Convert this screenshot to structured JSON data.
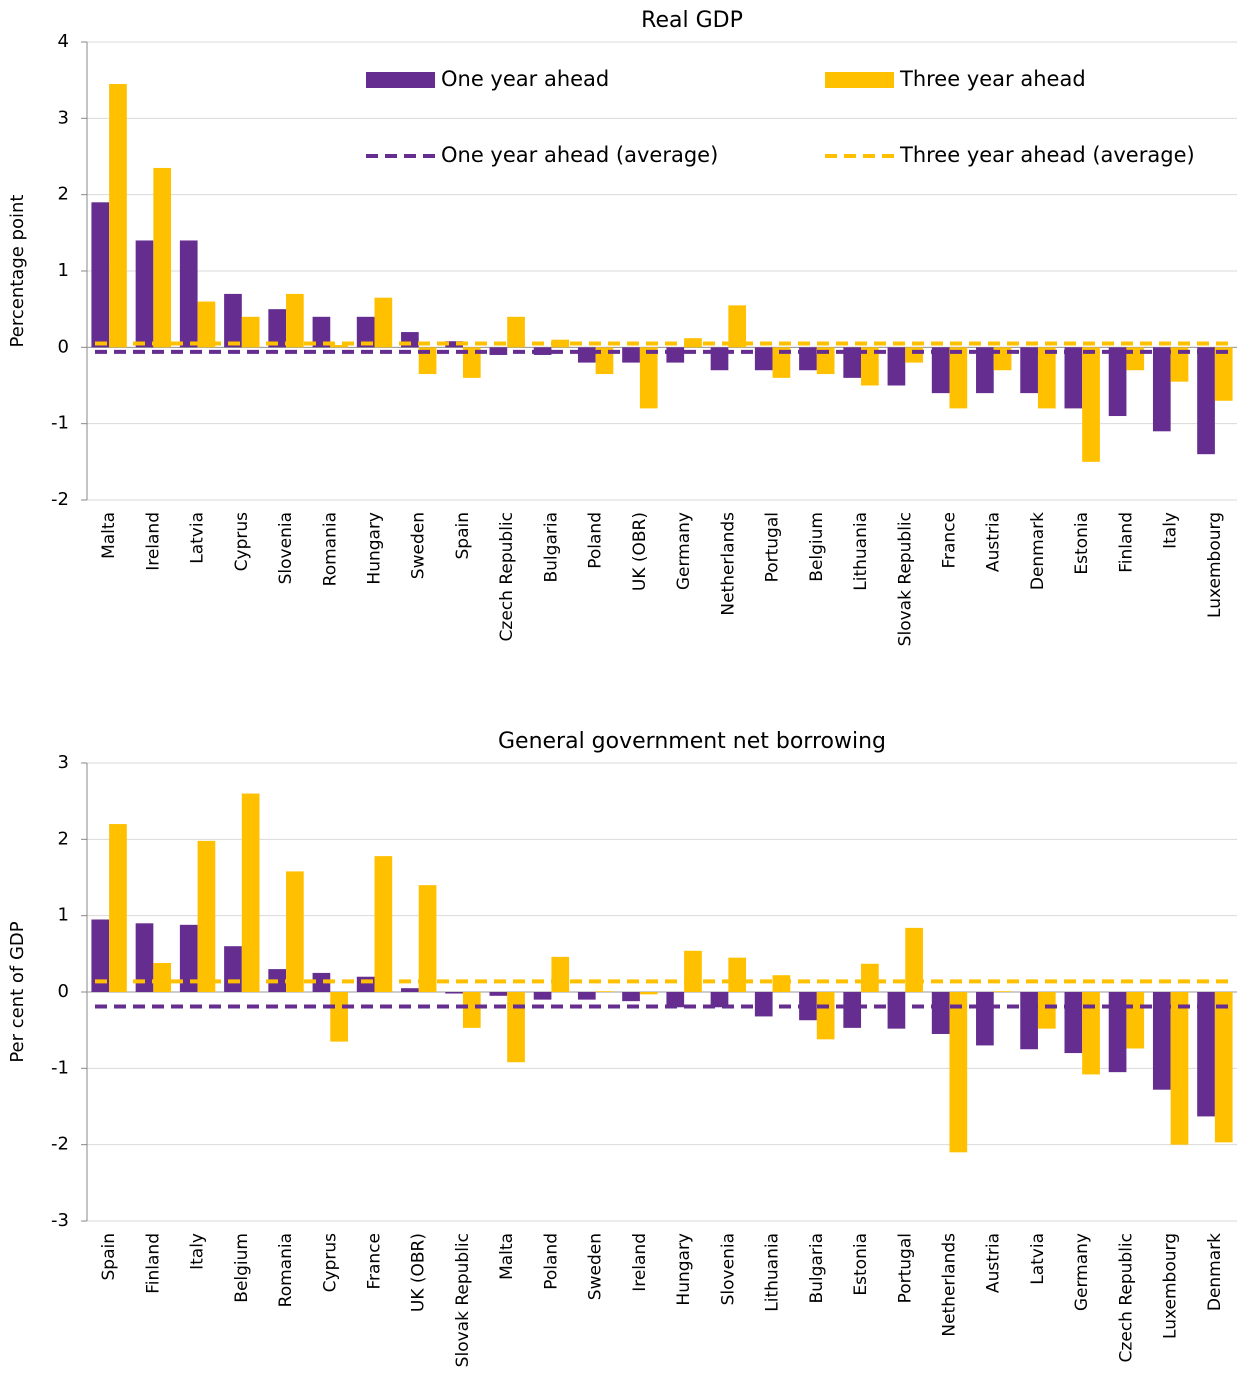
{
  "chart_data": [
    {
      "type": "bar",
      "title": "Real GDP",
      "y_label": "Percentage point",
      "categories": [
        "Malta",
        "Ireland",
        "Latvia",
        "Cyprus",
        "Slovenia",
        "Romania",
        "Hungary",
        "Sweden",
        "Spain",
        "Czech Republic",
        "Bulgaria",
        "Poland",
        "UK (OBR)",
        "Germany",
        "Netherlands",
        "Portugal",
        "Belgium",
        "Lithuania",
        "Slovak Republic",
        "France",
        "Austria",
        "Denmark",
        "Estonia",
        "Finland",
        "Italy",
        "Luxembourg"
      ],
      "series": [
        {
          "name": "One year ahead",
          "color": "#662d91",
          "values": [
            1.9,
            1.4,
            1.4,
            0.7,
            0.5,
            0.4,
            0.4,
            0.2,
            0.08,
            -0.1,
            -0.1,
            -0.2,
            -0.2,
            -0.2,
            -0.3,
            -0.3,
            -0.3,
            -0.4,
            -0.5,
            -0.6,
            -0.6,
            -0.6,
            -0.8,
            -0.9,
            -1.1,
            -1.4
          ]
        },
        {
          "name": "Three year ahead",
          "color": "#ffc000",
          "values": [
            3.45,
            2.35,
            0.6,
            0.4,
            0.7,
            0.03,
            0.65,
            -0.35,
            -0.4,
            0.4,
            0.1,
            -0.35,
            -0.8,
            0.12,
            0.55,
            -0.4,
            -0.35,
            -0.5,
            -0.2,
            -0.8,
            -0.3,
            -0.8,
            -1.5,
            -0.3,
            -0.45,
            -0.7
          ]
        }
      ],
      "average_lines": [
        {
          "name": "One year ahead (average)",
          "color": "#662d91",
          "value": -0.06
        },
        {
          "name": "Three year ahead (average)",
          "color": "#ffc000",
          "value": 0.05
        }
      ],
      "ylim": [
        -2,
        4
      ],
      "yticks": [
        -2,
        -1,
        0,
        1,
        2,
        3,
        4
      ],
      "grid": true,
      "legend": true
    },
    {
      "type": "bar",
      "title": "General government net borrowing",
      "y_label": "Per cent of GDP",
      "categories": [
        "Spain",
        "Finland",
        "Italy",
        "Belgium",
        "Romania",
        "Cyprus",
        "France",
        "UK (OBR)",
        "Slovak Republic",
        "Malta",
        "Poland",
        "Sweden",
        "Ireland",
        "Hungary",
        "Slovenia",
        "Lithuania",
        "Bulgaria",
        "Estonia",
        "Portugal",
        "Netherlands",
        "Austria",
        "Latvia",
        "Germany",
        "Czech Republic",
        "Luxembourg",
        "Denmark"
      ],
      "series": [
        {
          "name": "One year ahead",
          "color": "#662d91",
          "values": [
            0.95,
            0.9,
            0.88,
            0.6,
            0.3,
            0.25,
            0.2,
            0.05,
            -0.02,
            -0.05,
            -0.1,
            -0.1,
            -0.12,
            -0.2,
            -0.2,
            -0.32,
            -0.37,
            -0.47,
            -0.48,
            -0.55,
            -0.7,
            -0.75,
            -0.8,
            -1.05,
            -1.28,
            -1.63
          ]
        },
        {
          "name": "Three year ahead",
          "color": "#ffc000",
          "values": [
            2.2,
            0.38,
            1.98,
            2.6,
            1.58,
            -0.65,
            1.78,
            1.4,
            -0.47,
            -0.92,
            0.46,
            0.01,
            -0.03,
            0.54,
            0.45,
            0.22,
            -0.62,
            0.37,
            0.84,
            -2.1,
            0.01,
            -0.48,
            -1.08,
            -0.74,
            -2.0,
            -1.97
          ]
        }
      ],
      "average_lines": [
        {
          "name": "One year ahead (average)",
          "color": "#662d91",
          "value": -0.19
        },
        {
          "name": "Three year ahead (average)",
          "color": "#ffc000",
          "value": 0.14
        }
      ],
      "ylim": [
        -3,
        3
      ],
      "yticks": [
        -3,
        -2,
        -1,
        0,
        1,
        2,
        3
      ],
      "grid": true,
      "legend": false
    }
  ]
}
